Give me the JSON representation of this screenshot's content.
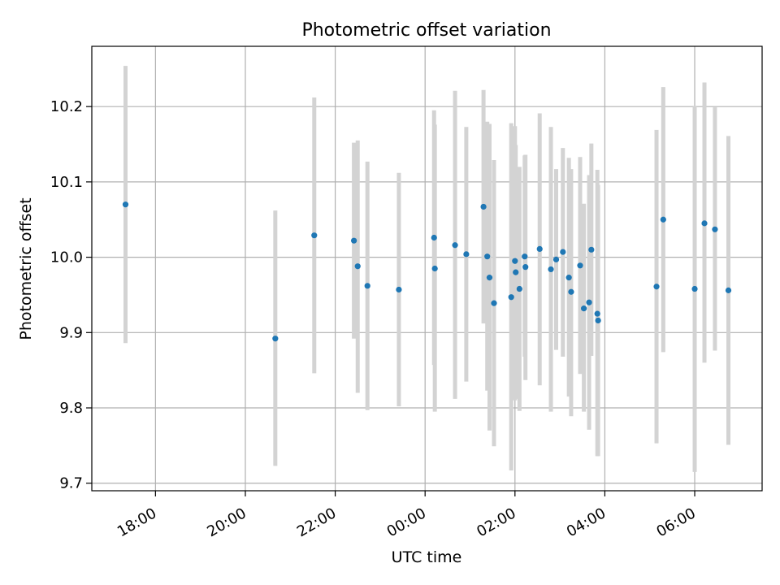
{
  "chart_data": {
    "type": "scatter",
    "title": "Photometric offset variation",
    "xlabel": "UTC time",
    "ylabel": "Photometric offset",
    "x_tick_labels": [
      "18:00",
      "20:00",
      "22:00",
      "00:00",
      "02:00",
      "04:00",
      "06:00"
    ],
    "y_tick_labels": [
      "9.7",
      "9.8",
      "9.9",
      "10.0",
      "10.1",
      "10.2"
    ],
    "xlim": [
      "16:35",
      "07:30"
    ],
    "ylim": [
      9.69,
      10.28
    ],
    "grid": true,
    "colors": {
      "points": "#1f77b4",
      "error_bars": "#d3d3d3",
      "grid": "#b0b0b0"
    },
    "points": [
      {
        "time": "17:20",
        "y": 10.07,
        "ylow": 9.886,
        "yhigh": 10.254
      },
      {
        "time": "20:40",
        "y": 9.892,
        "ylow": 9.723,
        "yhigh": 10.062
      },
      {
        "time": "21:32",
        "y": 10.029,
        "ylow": 9.846,
        "yhigh": 10.212
      },
      {
        "time": "22:25",
        "y": 10.022,
        "ylow": 9.892,
        "yhigh": 10.152
      },
      {
        "time": "22:30",
        "y": 9.988,
        "ylow": 9.82,
        "yhigh": 10.155
      },
      {
        "time": "22:43",
        "y": 9.962,
        "ylow": 9.797,
        "yhigh": 10.127
      },
      {
        "time": "23:25",
        "y": 9.957,
        "ylow": 9.802,
        "yhigh": 10.112
      },
      {
        "time": "00:12",
        "y": 10.026,
        "ylow": 9.857,
        "yhigh": 10.195
      },
      {
        "time": "00:13",
        "y": 9.985,
        "ylow": 9.795,
        "yhigh": 10.176
      },
      {
        "time": "00:40",
        "y": 10.016,
        "ylow": 9.812,
        "yhigh": 10.221
      },
      {
        "time": "00:55",
        "y": 10.004,
        "ylow": 9.835,
        "yhigh": 10.173
      },
      {
        "time": "01:18",
        "y": 10.067,
        "ylow": 9.912,
        "yhigh": 10.222
      },
      {
        "time": "01:23",
        "y": 10.001,
        "ylow": 9.823,
        "yhigh": 10.18
      },
      {
        "time": "01:26",
        "y": 9.973,
        "ylow": 9.77,
        "yhigh": 10.177
      },
      {
        "time": "01:32",
        "y": 9.939,
        "ylow": 9.749,
        "yhigh": 10.129
      },
      {
        "time": "01:55",
        "y": 9.947,
        "ylow": 9.717,
        "yhigh": 10.178
      },
      {
        "time": "02:00",
        "y": 9.995,
        "ylow": 9.81,
        "yhigh": 10.174
      },
      {
        "time": "02:01",
        "y": 9.98,
        "ylow": 9.812,
        "yhigh": 10.149
      },
      {
        "time": "02:06",
        "y": 9.958,
        "ylow": 9.796,
        "yhigh": 10.12
      },
      {
        "time": "02:13",
        "y": 10.001,
        "ylow": 9.868,
        "yhigh": 10.135
      },
      {
        "time": "02:14",
        "y": 9.987,
        "ylow": 9.837,
        "yhigh": 10.136
      },
      {
        "time": "02:33",
        "y": 10.011,
        "ylow": 9.83,
        "yhigh": 10.191
      },
      {
        "time": "02:48",
        "y": 9.984,
        "ylow": 9.795,
        "yhigh": 10.173
      },
      {
        "time": "02:55",
        "y": 9.997,
        "ylow": 9.877,
        "yhigh": 10.117
      },
      {
        "time": "03:04",
        "y": 10.007,
        "ylow": 9.868,
        "yhigh": 10.145
      },
      {
        "time": "03:12",
        "y": 9.973,
        "ylow": 9.815,
        "yhigh": 10.132
      },
      {
        "time": "03:15",
        "y": 9.954,
        "ylow": 9.789,
        "yhigh": 10.117
      },
      {
        "time": "03:27",
        "y": 9.989,
        "ylow": 9.845,
        "yhigh": 10.133
      },
      {
        "time": "03:32",
        "y": 9.932,
        "ylow": 9.795,
        "yhigh": 10.071
      },
      {
        "time": "03:39",
        "y": 9.94,
        "ylow": 9.771,
        "yhigh": 10.109
      },
      {
        "time": "03:42",
        "y": 10.01,
        "ylow": 9.869,
        "yhigh": 10.151
      },
      {
        "time": "03:50",
        "y": 9.925,
        "ylow": 9.736,
        "yhigh": 10.116
      },
      {
        "time": "03:51",
        "y": 9.916,
        "ylow": 9.736,
        "yhigh": 10.096
      },
      {
        "time": "05:09",
        "y": 9.961,
        "ylow": 9.753,
        "yhigh": 10.169
      },
      {
        "time": "05:18",
        "y": 10.05,
        "ylow": 9.874,
        "yhigh": 10.226
      },
      {
        "time": "06:00",
        "y": 9.958,
        "ylow": 9.715,
        "yhigh": 10.201
      },
      {
        "time": "06:13",
        "y": 10.045,
        "ylow": 9.86,
        "yhigh": 10.232
      },
      {
        "time": "06:27",
        "y": 10.037,
        "ylow": 9.876,
        "yhigh": 10.199
      },
      {
        "time": "06:45",
        "y": 9.956,
        "ylow": 9.751,
        "yhigh": 10.161
      }
    ]
  }
}
